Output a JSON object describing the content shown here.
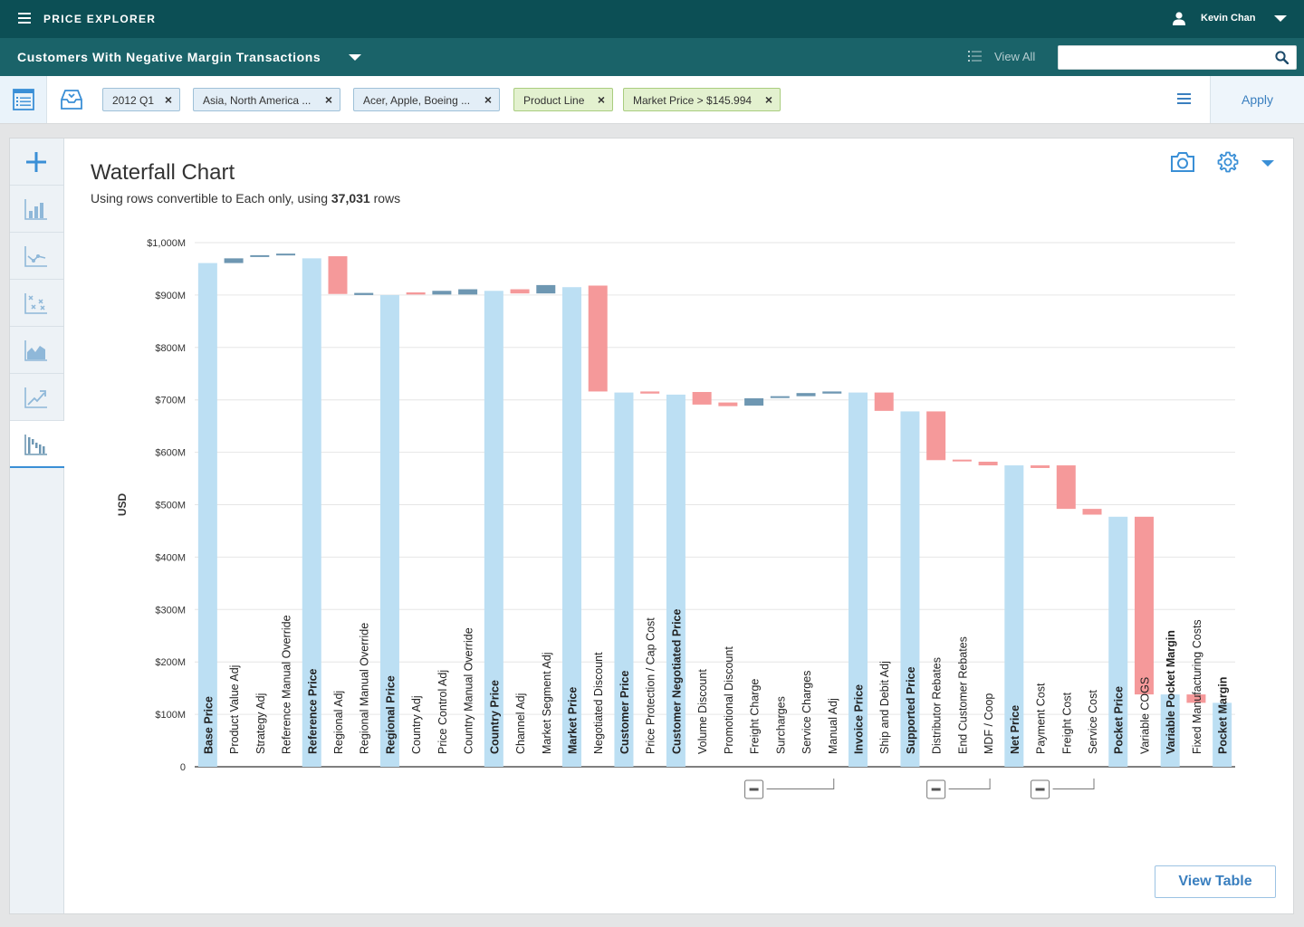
{
  "app": {
    "title": "PRICE EXPLORER",
    "user_name": "Kevin Chan"
  },
  "header": {
    "report_title": "Customers With Negative Margin Transactions",
    "view_all_label": "View All",
    "search_placeholder": ""
  },
  "filters": {
    "chips": [
      {
        "label": "2012 Q1",
        "kind": "blue"
      },
      {
        "label": "Asia, North America ...",
        "kind": "blue"
      },
      {
        "label": "Acer, Apple, Boeing ...",
        "kind": "blue"
      },
      {
        "label": "Product Line",
        "kind": "green"
      },
      {
        "label": "Market Price > $145.994",
        "kind": "green"
      }
    ],
    "apply_label": "Apply"
  },
  "tools": [
    "add-icon",
    "bar-chart-icon",
    "line-chart-icon",
    "scatter-chart-icon",
    "area-chart-icon",
    "trend-chart-icon",
    "waterfall-chart-icon"
  ],
  "panel": {
    "title": "Waterfall Chart",
    "subtitle_prefix": "Using rows convertible to Each only, using ",
    "subtitle_count": "37,031",
    "subtitle_suffix": " rows",
    "view_table_label": "View Table"
  },
  "colors": {
    "total": "#bcdff3",
    "increase": "#6e97b2",
    "decrease": "#f5999a",
    "accent": "#3a8fd6"
  },
  "chart_data": {
    "type": "waterfall",
    "ylabel": "USD",
    "ylim": [
      0,
      1000
    ],
    "y_unit": "M",
    "y_ticks": [
      "0",
      "$100M",
      "$200M",
      "$300M",
      "$400M",
      "$500M",
      "$600M",
      "$700M",
      "$800M",
      "$900M",
      "$1,000M"
    ],
    "bars": [
      {
        "label": "Base Price",
        "kind": "total",
        "start": 0,
        "end": 961
      },
      {
        "label": "Product Value Adj",
        "kind": "increase",
        "start": 961,
        "end": 970
      },
      {
        "label": "Strategy Adj",
        "kind": "increase",
        "start": 973,
        "end": 976
      },
      {
        "label": "Reference Manual Override",
        "kind": "increase",
        "start": 976,
        "end": 979
      },
      {
        "label": "Reference Price",
        "kind": "total",
        "start": 0,
        "end": 970
      },
      {
        "label": "Regional Adj",
        "kind": "decrease",
        "start": 974,
        "end": 902
      },
      {
        "label": "Regional Manual Override",
        "kind": "increase",
        "start": 900,
        "end": 904
      },
      {
        "label": "Regional Price",
        "kind": "total",
        "start": 0,
        "end": 900
      },
      {
        "label": "Country Adj",
        "kind": "decrease",
        "start": 905,
        "end": 901
      },
      {
        "label": "Price Control Adj",
        "kind": "increase",
        "start": 901,
        "end": 908
      },
      {
        "label": "Country Manual Override",
        "kind": "increase",
        "start": 901,
        "end": 911
      },
      {
        "label": "Country Price",
        "kind": "total",
        "start": 0,
        "end": 908
      },
      {
        "label": "Channel Adj",
        "kind": "decrease",
        "start": 911,
        "end": 903
      },
      {
        "label": "Market Segment Adj",
        "kind": "increase",
        "start": 903,
        "end": 919
      },
      {
        "label": "Market Price",
        "kind": "total",
        "start": 0,
        "end": 915
      },
      {
        "label": "Negotiated Discount",
        "kind": "decrease",
        "start": 918,
        "end": 716
      },
      {
        "label": "Customer Price",
        "kind": "total",
        "start": 0,
        "end": 714
      },
      {
        "label": "Price Protection / Cap Cost",
        "kind": "decrease",
        "start": 716,
        "end": 712
      },
      {
        "label": "Customer Negotiated Price",
        "kind": "total",
        "start": 0,
        "end": 710
      },
      {
        "label": "Volume Discount",
        "kind": "decrease",
        "start": 715,
        "end": 691
      },
      {
        "label": "Promotional Discount",
        "kind": "decrease",
        "start": 695,
        "end": 688
      },
      {
        "label": "Freight Charge",
        "kind": "increase",
        "start": 689,
        "end": 703
      },
      {
        "label": "Surcharges",
        "kind": "increase",
        "start": 704,
        "end": 707
      },
      {
        "label": "Service Charges",
        "kind": "increase",
        "start": 707,
        "end": 713
      },
      {
        "label": "Manual Adj",
        "kind": "increase",
        "start": 712,
        "end": 716
      },
      {
        "label": "Invoice Price",
        "kind": "total",
        "start": 0,
        "end": 714
      },
      {
        "label": "Ship and Debit Adj",
        "kind": "decrease",
        "start": 714,
        "end": 679
      },
      {
        "label": "Supported Price",
        "kind": "total",
        "start": 0,
        "end": 678
      },
      {
        "label": "Distributor Rebates",
        "kind": "decrease",
        "start": 678,
        "end": 585
      },
      {
        "label": "End Customer Rebates",
        "kind": "decrease",
        "start": 586,
        "end": 583
      },
      {
        "label": "MDF / Coop",
        "kind": "decrease",
        "start": 582,
        "end": 575
      },
      {
        "label": "Net Price",
        "kind": "total",
        "start": 0,
        "end": 575
      },
      {
        "label": "Payment Cost",
        "kind": "decrease",
        "start": 575,
        "end": 570
      },
      {
        "label": "Freight Cost",
        "kind": "decrease",
        "start": 575,
        "end": 492
      },
      {
        "label": "Service Cost",
        "kind": "decrease",
        "start": 492,
        "end": 481
      },
      {
        "label": "Pocket Price",
        "kind": "total",
        "start": 0,
        "end": 477
      },
      {
        "label": "Variable COGS",
        "kind": "decrease",
        "start": 477,
        "end": 138
      },
      {
        "label": "Variable Pocket Margin",
        "kind": "total",
        "start": 0,
        "end": 138
      },
      {
        "label": "Fixed Manufacturing Costs",
        "kind": "decrease",
        "start": 138,
        "end": 122
      },
      {
        "label": "Pocket Margin",
        "kind": "total",
        "start": 0,
        "end": 122
      }
    ],
    "groups": [
      {
        "from": 21,
        "to": 24
      },
      {
        "from": 28,
        "to": 30
      },
      {
        "from": 32,
        "to": 34
      }
    ]
  }
}
